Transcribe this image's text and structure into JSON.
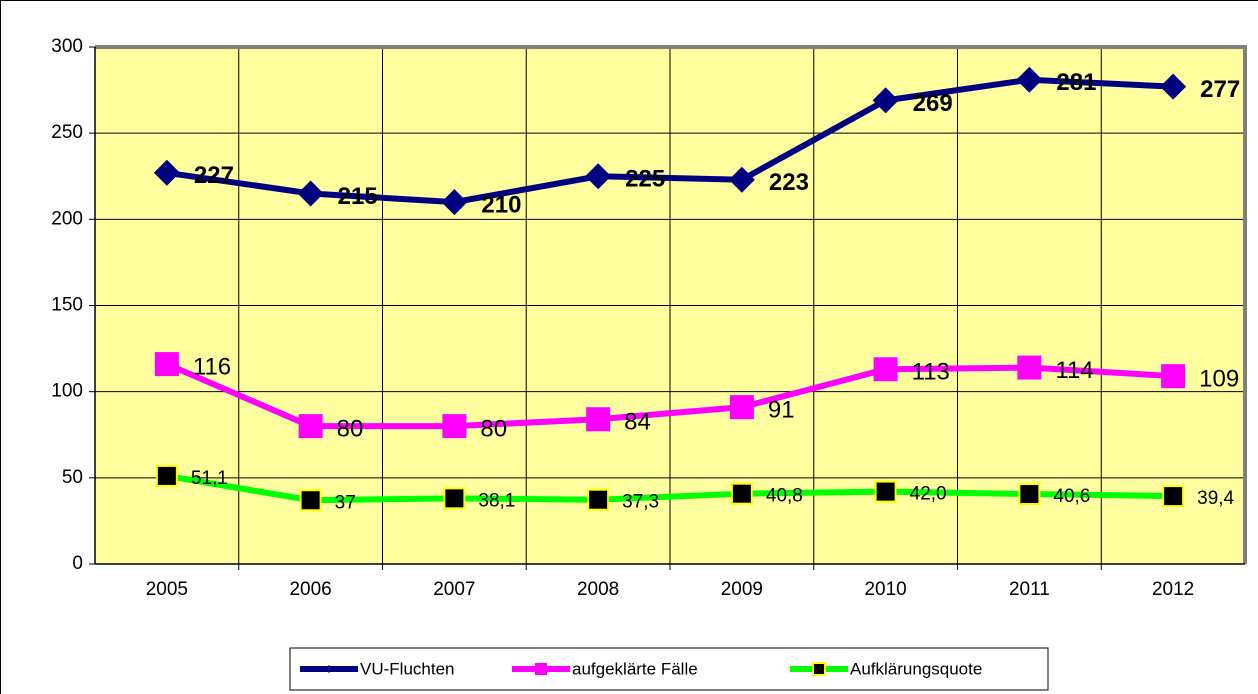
{
  "chart_data": {
    "type": "line",
    "categories": [
      "2005",
      "2006",
      "2007",
      "2008",
      "2009",
      "2010",
      "2011",
      "2012"
    ],
    "series": [
      {
        "name": "VU-Fluchten",
        "color": "#000080",
        "marker": "diamond",
        "values": [
          227,
          215,
          210,
          225,
          223,
          269,
          281,
          277
        ]
      },
      {
        "name": "aufgeklärte Fälle",
        "color": "#ff00ff",
        "marker": "square",
        "values": [
          116,
          80,
          80,
          84,
          91,
          113,
          114,
          109
        ]
      },
      {
        "name": "Aufklärungsquote",
        "color": "#00ff00",
        "marker": "square",
        "values": [
          51.1,
          37,
          38.1,
          37.3,
          40.8,
          42.0,
          40.6,
          39.4
        ],
        "value_labels": [
          "51,1",
          "37",
          "38,1",
          "37,3",
          "40,8",
          "42,0",
          "40,6",
          "39,4"
        ]
      }
    ],
    "ylim": [
      0,
      300
    ],
    "yticks": [
      0,
      50,
      100,
      150,
      200,
      250,
      300
    ],
    "grid": true,
    "legend": "bottom"
  }
}
